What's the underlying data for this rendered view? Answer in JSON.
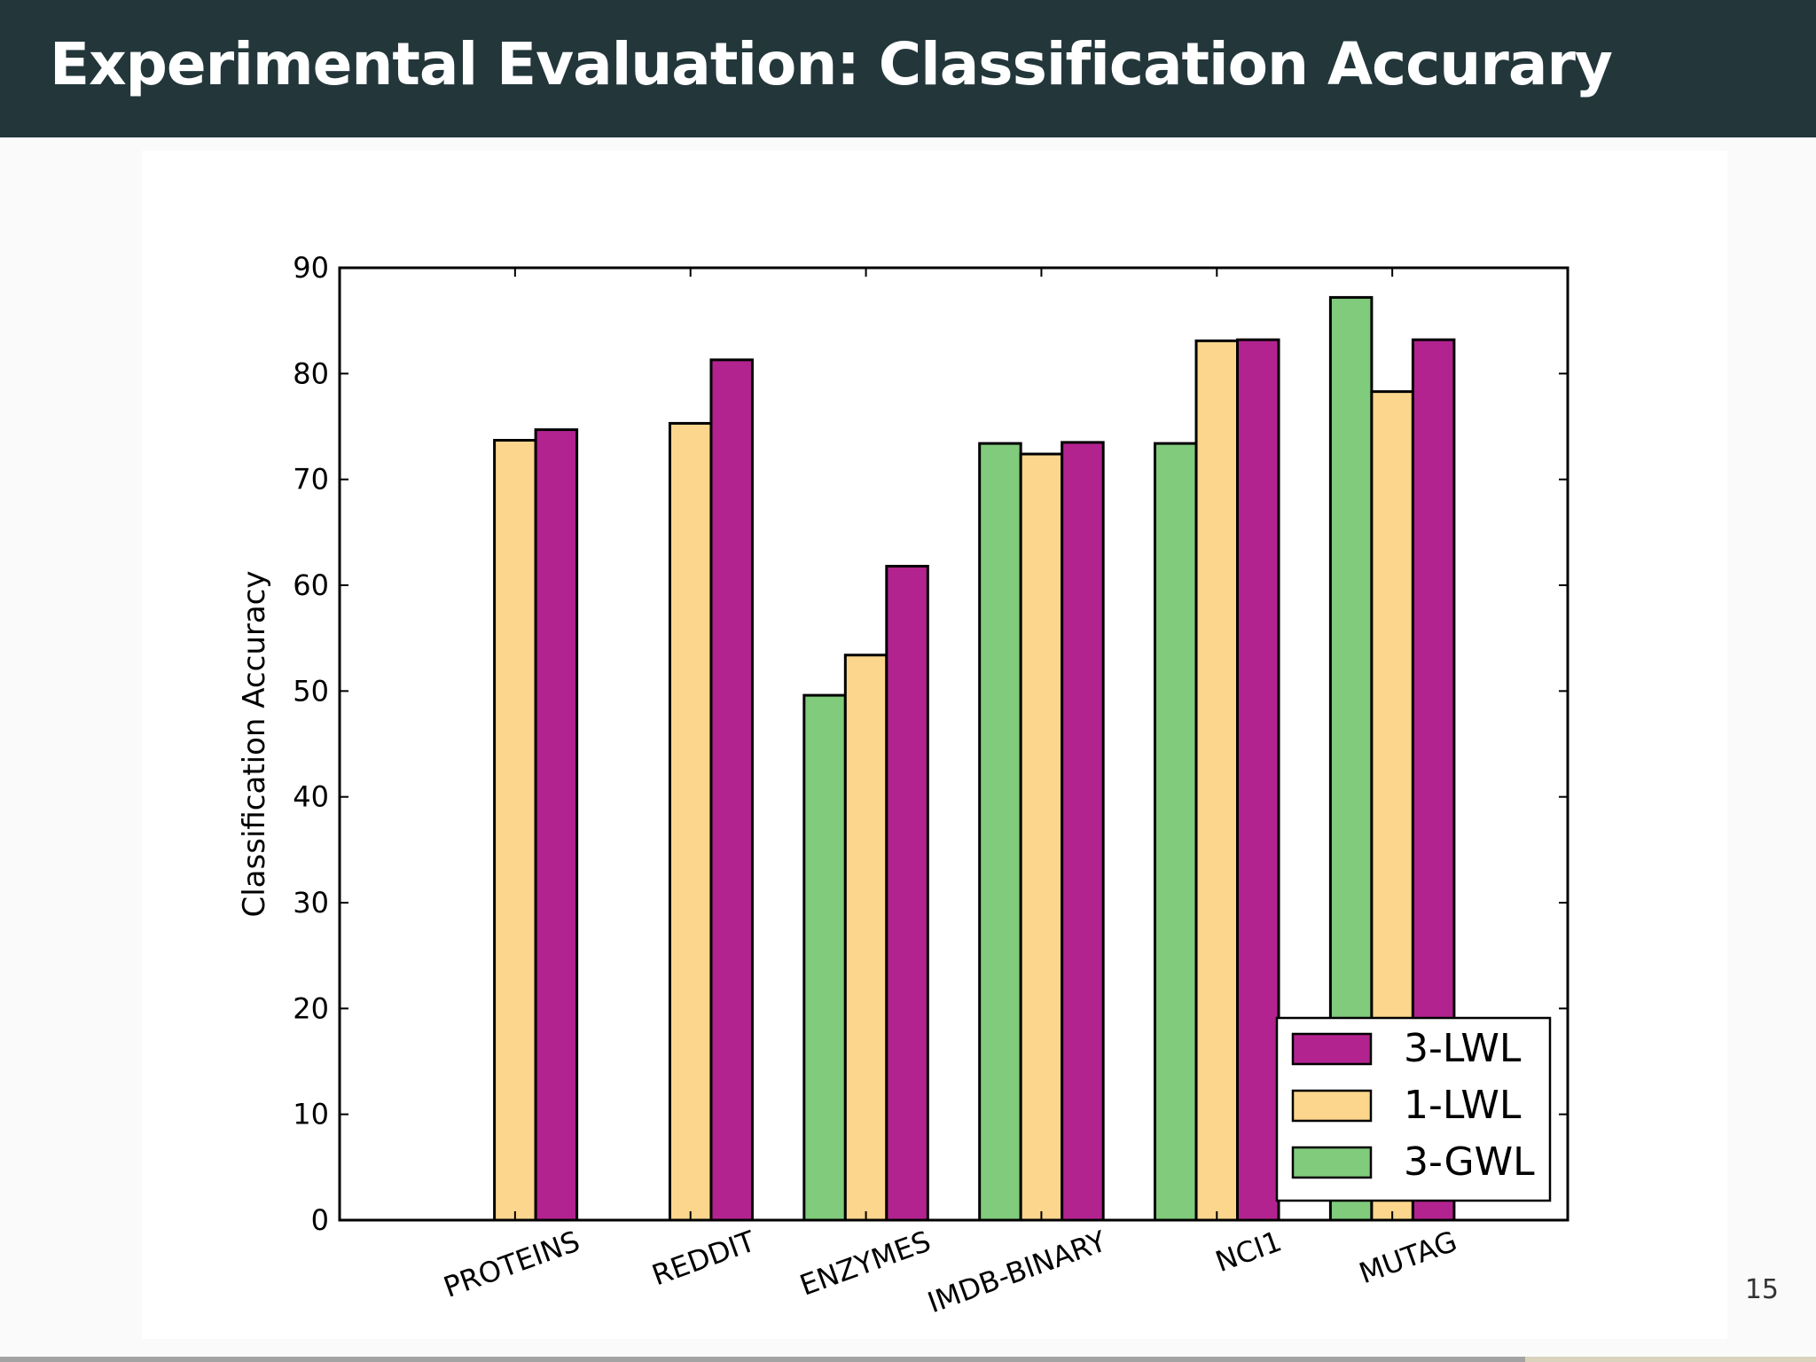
{
  "slide": {
    "title": "Experimental Evaluation: Classification Accurary",
    "page_number": "15",
    "progress": 0.84
  },
  "colors": {
    "header_bg": "#23373b",
    "3-LWL": "#b2238f",
    "1-LWL": "#fcd68c",
    "3-GWL": "#80cb7c"
  },
  "chart_data": {
    "type": "bar",
    "title": "",
    "xlabel": "",
    "ylabel": "Classification Accuracy",
    "ylim": [
      0,
      90
    ],
    "yticks": [
      0,
      10,
      20,
      30,
      40,
      50,
      60,
      70,
      80,
      90
    ],
    "grid": false,
    "legend_position": "lower-right",
    "categories": [
      "PROTEINS",
      "REDDIT",
      "ENZYMES",
      "IMDB-BINARY",
      "NCI1",
      "MUTAG"
    ],
    "series": [
      {
        "name": "3-GWL",
        "color": "#80cb7c",
        "values": [
          null,
          null,
          49.6,
          73.4,
          73.4,
          87.2
        ]
      },
      {
        "name": "1-LWL",
        "color": "#fcd68c",
        "values": [
          73.7,
          75.3,
          53.4,
          72.4,
          83.1,
          78.3
        ]
      },
      {
        "name": "3-LWL",
        "color": "#b2238f",
        "values": [
          74.7,
          81.3,
          61.8,
          73.5,
          83.2,
          83.2
        ]
      }
    ],
    "legend_order": [
      "3-LWL",
      "1-LWL",
      "3-GWL"
    ]
  }
}
